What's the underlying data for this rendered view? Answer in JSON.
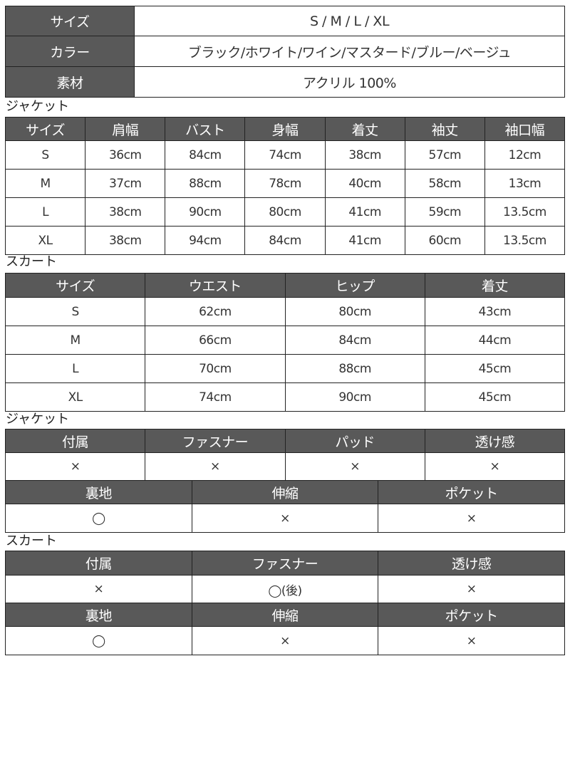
{
  "spec": {
    "rows": [
      {
        "label": "サイズ",
        "value": "S / M / L / XL"
      },
      {
        "label": "カラー",
        "value": "ブラック/ホワイト/ワイン/マスタード/ブルー/ベージュ"
      },
      {
        "label": "素材",
        "value": "アクリル 100%"
      }
    ]
  },
  "jacket_size": {
    "title": "ジャケット",
    "headers": [
      "サイズ",
      "肩幅",
      "バスト",
      "身幅",
      "着丈",
      "袖丈",
      "袖口幅"
    ],
    "rows": [
      [
        "S",
        "36cm",
        "84cm",
        "74cm",
        "38cm",
        "57cm",
        "12cm"
      ],
      [
        "M",
        "37cm",
        "88cm",
        "78cm",
        "40cm",
        "58cm",
        "13cm"
      ],
      [
        "L",
        "38cm",
        "90cm",
        "80cm",
        "41cm",
        "59cm",
        "13.5cm"
      ],
      [
        "XL",
        "38cm",
        "94cm",
        "84cm",
        "41cm",
        "60cm",
        "13.5cm"
      ]
    ]
  },
  "skirt_size": {
    "title": "スカート",
    "headers": [
      "サイズ",
      "ウエスト",
      "ヒップ",
      "着丈"
    ],
    "rows": [
      [
        "S",
        "62cm",
        "80cm",
        "43cm"
      ],
      [
        "M",
        "66cm",
        "84cm",
        "44cm"
      ],
      [
        "L",
        "70cm",
        "88cm",
        "45cm"
      ],
      [
        "XL",
        "74cm",
        "90cm",
        "45cm"
      ]
    ]
  },
  "jacket_attrs": {
    "title": "ジャケット",
    "table1": {
      "headers": [
        "付属",
        "ファスナー",
        "パッド",
        "透け感"
      ],
      "values": [
        "×",
        "×",
        "×",
        "×"
      ]
    },
    "table2": {
      "headers": [
        "裏地",
        "伸縮",
        "ポケット"
      ],
      "values": [
        "◯",
        "×",
        "×"
      ]
    }
  },
  "skirt_attrs": {
    "title": "スカート",
    "table1": {
      "headers": [
        "付属",
        "ファスナー",
        "透け感"
      ],
      "values": [
        "×",
        "◯(後)",
        "×"
      ]
    },
    "table2": {
      "headers": [
        "裏地",
        "伸縮",
        "ポケット"
      ],
      "values": [
        "◯",
        "×",
        "×"
      ]
    }
  },
  "colors": {
    "header_bg": "#595959",
    "header_text": "#ffffff",
    "border": "#222222"
  }
}
